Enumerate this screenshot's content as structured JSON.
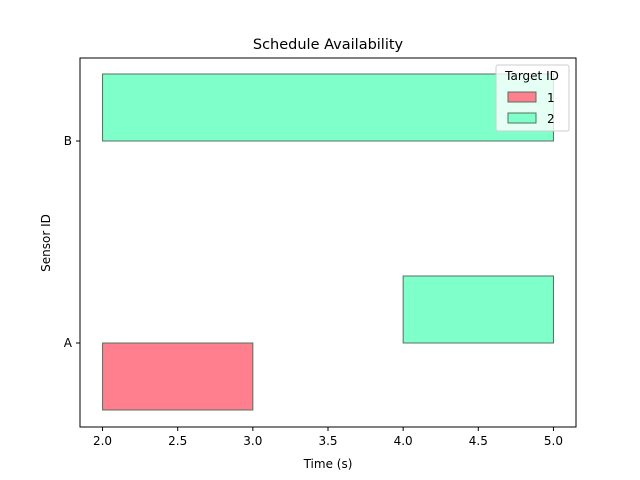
{
  "chart_data": {
    "type": "bar",
    "orientation": "horizontal-interval",
    "title": "Schedule Availability",
    "xlabel": "Time (s)",
    "ylabel": "Sensor ID",
    "xlim": [
      1.85,
      5.15
    ],
    "xticks": [
      2.0,
      2.5,
      3.0,
      3.5,
      4.0,
      4.5,
      5.0
    ],
    "xtick_labels": [
      "2.0",
      "2.5",
      "3.0",
      "3.5",
      "4.0",
      "4.5",
      "5.0"
    ],
    "categories": [
      "A",
      "B"
    ],
    "grid": false,
    "legend": {
      "title": "Target ID",
      "placement": "top-right",
      "entries": [
        {
          "label": "1",
          "color": "#ff7f8f"
        },
        {
          "label": "2",
          "color": "#7fffc9"
        }
      ]
    },
    "intervals": [
      {
        "sensor": "A",
        "target": "1",
        "start": 2.0,
        "end": 3.0
      },
      {
        "sensor": "A",
        "target": "2",
        "start": 4.0,
        "end": 5.0
      },
      {
        "sensor": "B",
        "target": "2",
        "start": 2.0,
        "end": 5.0
      }
    ],
    "colors": {
      "1": "#ff7f8f",
      "2": "#7fffc9",
      "edge": "#55705f"
    }
  }
}
